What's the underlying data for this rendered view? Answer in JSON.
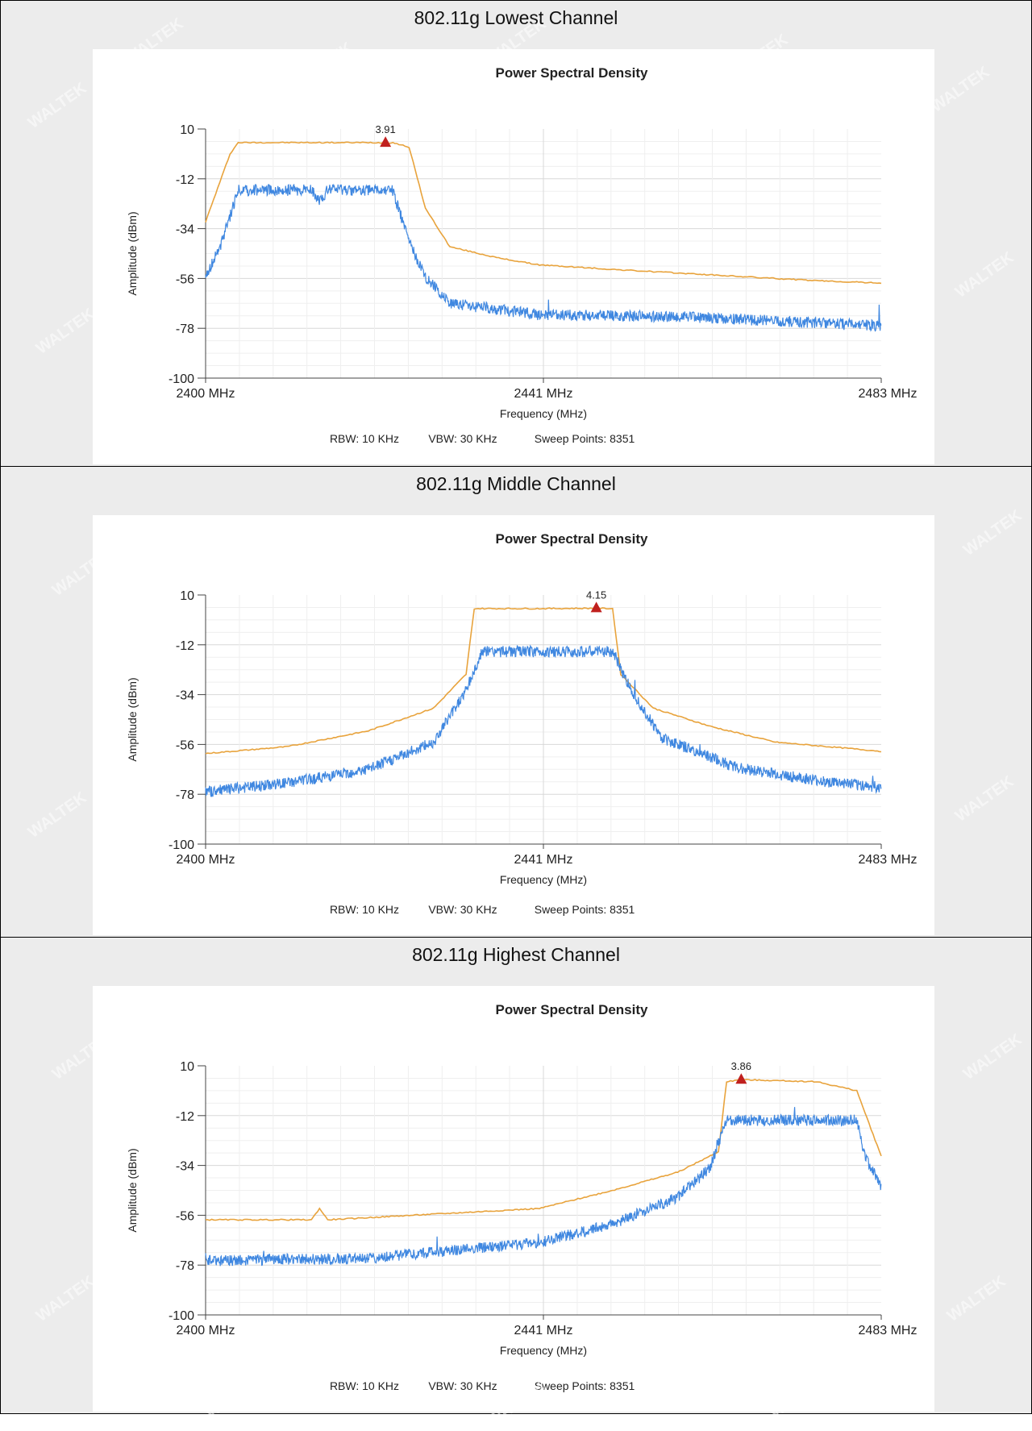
{
  "charts": [
    {
      "cell_title": "802.11g Lowest Channel",
      "marker": {
        "x": 2422.1,
        "value": "3.91"
      }
    },
    {
      "cell_title": "802.11g Middle Channel",
      "marker": {
        "x": 2448.0,
        "value": "4.15"
      }
    },
    {
      "cell_title": "802.11g Highest Channel",
      "marker": {
        "x": 2465.8,
        "value": "3.86"
      }
    }
  ],
  "shared": {
    "title": "Power Spectral Density",
    "xlabel": "Frequency (MHz)",
    "ylabel": "Amplitude (dBm)",
    "footer": {
      "rbw": "RBW: 10 KHz",
      "vbw": "VBW: 30 KHz",
      "sweep": "Sweep Points: 8351"
    },
    "x_ticks": [
      "2400 MHz",
      "2441 MHz",
      "2483 MHz"
    ],
    "y_ticks": [
      "10",
      "-12",
      "-34",
      "-56",
      "-78",
      "-100"
    ],
    "watermark": "WALTEK"
  },
  "chart_data": [
    {
      "type": "line",
      "title": "Power Spectral Density",
      "xlabel": "Frequency (MHz)",
      "ylabel": "Amplitude (dBm)",
      "xlim": [
        2400,
        2483
      ],
      "ylim": [
        -100,
        10
      ],
      "grid": true,
      "series": [
        {
          "color": "#e8a33c",
          "x": [
            2400,
            2403,
            2404,
            2421,
            2422.1,
            2423,
            2425,
            2427,
            2430,
            2436,
            2441,
            2450,
            2460,
            2475,
            2483
          ],
          "y": [
            -31,
            -1,
            4,
            4,
            3.91,
            4,
            2,
            -25,
            -42,
            -47,
            -50,
            -52,
            -54,
            -57,
            -58
          ]
        },
        {
          "color": "#3f87e0",
          "x": [
            2400,
            2402,
            2404,
            2413,
            2414,
            2415,
            2421,
            2423,
            2425,
            2427,
            2430,
            2441,
            2460,
            2483
          ],
          "y": [
            -56,
            -40,
            -17,
            -17,
            -22,
            -17,
            -17,
            -17,
            -40,
            -55,
            -67,
            -72,
            -73,
            -77
          ]
        }
      ]
    },
    {
      "type": "line",
      "title": "Power Spectral Density",
      "xlabel": "Frequency (MHz)",
      "ylabel": "Amplitude (dBm)",
      "xlim": [
        2400,
        2483
      ],
      "ylim": [
        -100,
        10
      ],
      "grid": true,
      "series": [
        {
          "color": "#e8a33c",
          "x": [
            2400,
            2410,
            2420,
            2428,
            2432,
            2433,
            2441,
            2448,
            2450,
            2451,
            2455,
            2462,
            2470,
            2483
          ],
          "y": [
            -60,
            -57,
            -50,
            -40,
            -25,
            4,
            4,
            4.15,
            4,
            -25,
            -40,
            -48,
            -55,
            -59
          ]
        },
        {
          "color": "#3f87e0",
          "x": [
            2400,
            2410,
            2420,
            2428,
            2432,
            2434,
            2441,
            2450,
            2452,
            2456,
            2465,
            2475,
            2483
          ],
          "y": [
            -77,
            -73,
            -67,
            -55,
            -32,
            -15,
            -15,
            -15,
            -30,
            -53,
            -66,
            -72,
            -75
          ]
        }
      ]
    },
    {
      "type": "line",
      "title": "Power Spectral Density",
      "xlabel": "Frequency (MHz)",
      "ylabel": "Amplitude (dBm)",
      "xlim": [
        2400,
        2483
      ],
      "ylim": [
        -100,
        10
      ],
      "grid": true,
      "series": [
        {
          "color": "#e8a33c",
          "x": [
            2400,
            2413,
            2414,
            2415,
            2441,
            2450,
            2458,
            2463,
            2464,
            2465.8,
            2475,
            2480,
            2483
          ],
          "y": [
            -58,
            -58,
            -53,
            -58,
            -53,
            -45,
            -37,
            -28,
            3,
            3.86,
            3,
            -1,
            -30
          ]
        },
        {
          "color": "#3f87e0",
          "x": [
            2400,
            2420,
            2441,
            2450,
            2458,
            2462,
            2464,
            2474,
            2480,
            2481,
            2483
          ],
          "y": [
            -76,
            -75,
            -68,
            -60,
            -48,
            -35,
            -14,
            -14,
            -14,
            -30,
            -43
          ]
        }
      ]
    }
  ]
}
